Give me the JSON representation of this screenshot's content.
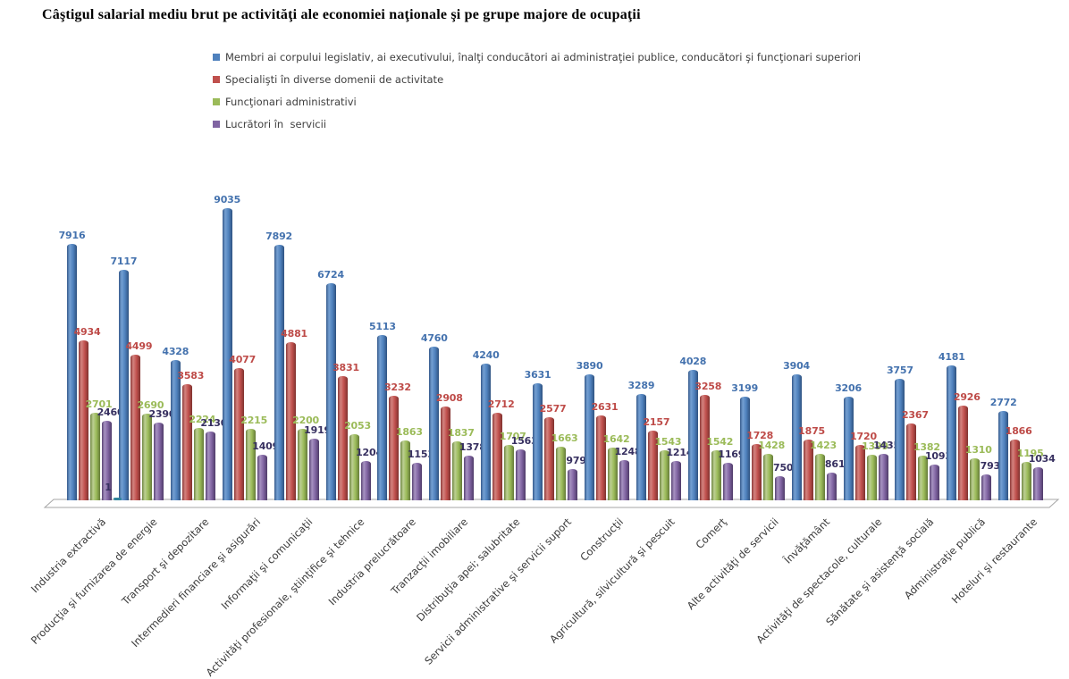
{
  "title": "Câştigul salarial mediu brut pe activităţi ale economiei naţionale şi pe grupe majore de ocupaţii",
  "chart_data": {
    "type": "bar",
    "title": "Câştigul salarial mediu brut pe activităţi ale economiei naţionale şi pe grupe majore de ocupaţii",
    "legend_position": "top-left",
    "grid": false,
    "y_axis_shown": false,
    "ylim": [
      0,
      9500
    ],
    "categories": [
      "Industria extractivă",
      "Producţia şi furnizarea de energie",
      "Transport şi depozitare",
      "Intermedieri financiare şi asigurări",
      "Informaţii şi comunicaţii",
      "Activităţi profesionale, ştiinţifice şi tehnice",
      "Industria prelucrătoare",
      "Tranzacţii imobiliare",
      "Distribuţia apei; salubritate",
      "Servicii administrative şi servicii suport",
      "Construcţii",
      "Agricultură, silvicultură şi pescuit",
      "Comerţ",
      "Alte activităţi de servicii",
      "Învăţământ",
      "Activităţi de spectacole, culturale",
      "Sănătate şi asistenţă socială",
      "Administraţie publică",
      "Hoteluri şi restaurante"
    ],
    "series": [
      {
        "name": "Membri ai corpului legislativ, ai executivului, înalţi conducători ai administraţiei publice, conducători şi funcţionari superiori",
        "color": "#4F81BD",
        "label_color": "#4472AE",
        "values": [
          7916,
          7117,
          4328,
          9035,
          7892,
          6724,
          5113,
          4760,
          4240,
          3631,
          3890,
          3289,
          4028,
          3199,
          3904,
          3206,
          3757,
          4181,
          2772
        ]
      },
      {
        "name": "Specialişti în diverse domenii de activitate",
        "color": "#C0504D",
        "label_color": "#BE4B48",
        "values": [
          4934,
          4499,
          3583,
          4077,
          4881,
          3831,
          3232,
          2908,
          2712,
          2577,
          2631,
          2157,
          3258,
          1728,
          1875,
          1720,
          2367,
          2926,
          1866
        ]
      },
      {
        "name": "Funcţionari administrativi",
        "color": "#9BBB59",
        "label_color": "#9BBB59",
        "values": [
          2701,
          2690,
          2224,
          2215,
          2200,
          2053,
          1863,
          1837,
          1707,
          1663,
          1642,
          1543,
          1542,
          1428,
          1423,
          1399,
          1382,
          1310,
          1195
        ]
      },
      {
        "name": "Lucrători în  servicii",
        "color": "#8064A2",
        "label_color": "#373060",
        "values": [
          2460,
          2390,
          2130,
          1409,
          1919,
          1204,
          1153,
          1378,
          1563,
          979,
          1248,
          1214,
          1169,
          750,
          861,
          1435,
          1093,
          793,
          1034
        ]
      }
    ],
    "extra_marker": {
      "category": "Industria extractivă",
      "value": 1,
      "label": "1",
      "color": "#31859C",
      "label_color": "#373060"
    }
  }
}
